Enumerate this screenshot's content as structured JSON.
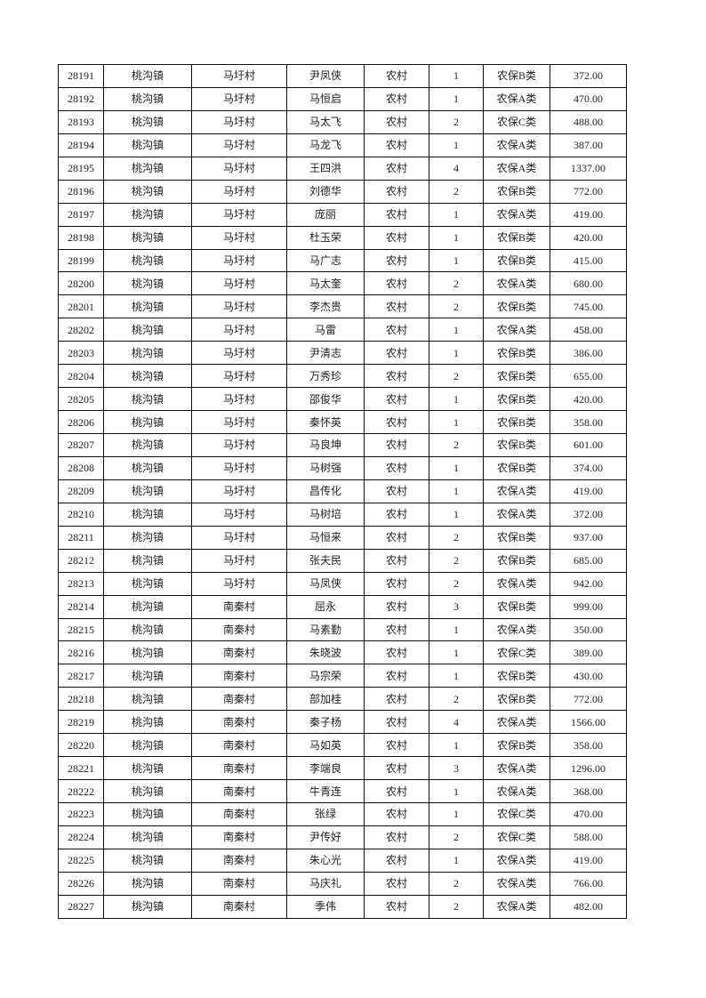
{
  "page": {
    "background_color": "#ffffff",
    "text_color": "#1f1f1f",
    "border_color": "#0d0d0d"
  },
  "table": {
    "column_keys": [
      "record-id",
      "town",
      "village",
      "person-name",
      "residence-type",
      "person-count",
      "insurance-class",
      "amount"
    ],
    "rows": [
      [
        "28191",
        "桃沟镇",
        "马圩村",
        "尹凤侠",
        "农村",
        "1",
        "农保B类",
        "372.00"
      ],
      [
        "28192",
        "桃沟镇",
        "马圩村",
        "马恒启",
        "农村",
        "1",
        "农保A类",
        "470.00"
      ],
      [
        "28193",
        "桃沟镇",
        "马圩村",
        "马太飞",
        "农村",
        "2",
        "农保C类",
        "488.00"
      ],
      [
        "28194",
        "桃沟镇",
        "马圩村",
        "马龙飞",
        "农村",
        "1",
        "农保A类",
        "387.00"
      ],
      [
        "28195",
        "桃沟镇",
        "马圩村",
        "王四洪",
        "农村",
        "4",
        "农保A类",
        "1337.00"
      ],
      [
        "28196",
        "桃沟镇",
        "马圩村",
        "刘德华",
        "农村",
        "2",
        "农保B类",
        "772.00"
      ],
      [
        "28197",
        "桃沟镇",
        "马圩村",
        "庞丽",
        "农村",
        "1",
        "农保A类",
        "419.00"
      ],
      [
        "28198",
        "桃沟镇",
        "马圩村",
        "杜玉荣",
        "农村",
        "1",
        "农保B类",
        "420.00"
      ],
      [
        "28199",
        "桃沟镇",
        "马圩村",
        "马广志",
        "农村",
        "1",
        "农保B类",
        "415.00"
      ],
      [
        "28200",
        "桃沟镇",
        "马圩村",
        "马太奎",
        "农村",
        "2",
        "农保A类",
        "680.00"
      ],
      [
        "28201",
        "桃沟镇",
        "马圩村",
        "李杰贵",
        "农村",
        "2",
        "农保B类",
        "745.00"
      ],
      [
        "28202",
        "桃沟镇",
        "马圩村",
        "马雷",
        "农村",
        "1",
        "农保A类",
        "458.00"
      ],
      [
        "28203",
        "桃沟镇",
        "马圩村",
        "尹清志",
        "农村",
        "1",
        "农保B类",
        "386.00"
      ],
      [
        "28204",
        "桃沟镇",
        "马圩村",
        "万秀珍",
        "农村",
        "2",
        "农保B类",
        "655.00"
      ],
      [
        "28205",
        "桃沟镇",
        "马圩村",
        "邵俊华",
        "农村",
        "1",
        "农保B类",
        "420.00"
      ],
      [
        "28206",
        "桃沟镇",
        "马圩村",
        "秦怀英",
        "农村",
        "1",
        "农保B类",
        "358.00"
      ],
      [
        "28207",
        "桃沟镇",
        "马圩村",
        "马良坤",
        "农村",
        "2",
        "农保B类",
        "601.00"
      ],
      [
        "28208",
        "桃沟镇",
        "马圩村",
        "马树强",
        "农村",
        "1",
        "农保B类",
        "374.00"
      ],
      [
        "28209",
        "桃沟镇",
        "马圩村",
        "昌传化",
        "农村",
        "1",
        "农保A类",
        "419.00"
      ],
      [
        "28210",
        "桃沟镇",
        "马圩村",
        "马树培",
        "农村",
        "1",
        "农保A类",
        "372.00"
      ],
      [
        "28211",
        "桃沟镇",
        "马圩村",
        "马恒来",
        "农村",
        "2",
        "农保B类",
        "937.00"
      ],
      [
        "28212",
        "桃沟镇",
        "马圩村",
        "张夫民",
        "农村",
        "2",
        "农保B类",
        "685.00"
      ],
      [
        "28213",
        "桃沟镇",
        "马圩村",
        "马凤侠",
        "农村",
        "2",
        "农保A类",
        "942.00"
      ],
      [
        "28214",
        "桃沟镇",
        "南秦村",
        "屈永",
        "农村",
        "3",
        "农保B类",
        "999.00"
      ],
      [
        "28215",
        "桃沟镇",
        "南秦村",
        "马素勤",
        "农村",
        "1",
        "农保A类",
        "350.00"
      ],
      [
        "28216",
        "桃沟镇",
        "南秦村",
        "朱晓波",
        "农村",
        "1",
        "农保C类",
        "389.00"
      ],
      [
        "28217",
        "桃沟镇",
        "南秦村",
        "马宗荣",
        "农村",
        "1",
        "农保B类",
        "430.00"
      ],
      [
        "28218",
        "桃沟镇",
        "南秦村",
        "部加桂",
        "农村",
        "2",
        "农保B类",
        "772.00"
      ],
      [
        "28219",
        "桃沟镇",
        "南秦村",
        "秦子杨",
        "农村",
        "4",
        "农保A类",
        "1566.00"
      ],
      [
        "28220",
        "桃沟镇",
        "南秦村",
        "马如英",
        "农村",
        "1",
        "农保B类",
        "358.00"
      ],
      [
        "28221",
        "桃沟镇",
        "南秦村",
        "李端良",
        "农村",
        "3",
        "农保A类",
        "1296.00"
      ],
      [
        "28222",
        "桃沟镇",
        "南秦村",
        "牛青连",
        "农村",
        "1",
        "农保A类",
        "368.00"
      ],
      [
        "28223",
        "桃沟镇",
        "南秦村",
        "张绿",
        "农村",
        "1",
        "农保C类",
        "470.00"
      ],
      [
        "28224",
        "桃沟镇",
        "南秦村",
        "尹传好",
        "农村",
        "2",
        "农保C类",
        "588.00"
      ],
      [
        "28225",
        "桃沟镇",
        "南秦村",
        "朱心光",
        "农村",
        "1",
        "农保A类",
        "419.00"
      ],
      [
        "28226",
        "桃沟镇",
        "南秦村",
        "马庆礼",
        "农村",
        "2",
        "农保A类",
        "766.00"
      ],
      [
        "28227",
        "桃沟镇",
        "南秦村",
        "季伟",
        "农村",
        "2",
        "农保A类",
        "482.00"
      ]
    ]
  }
}
